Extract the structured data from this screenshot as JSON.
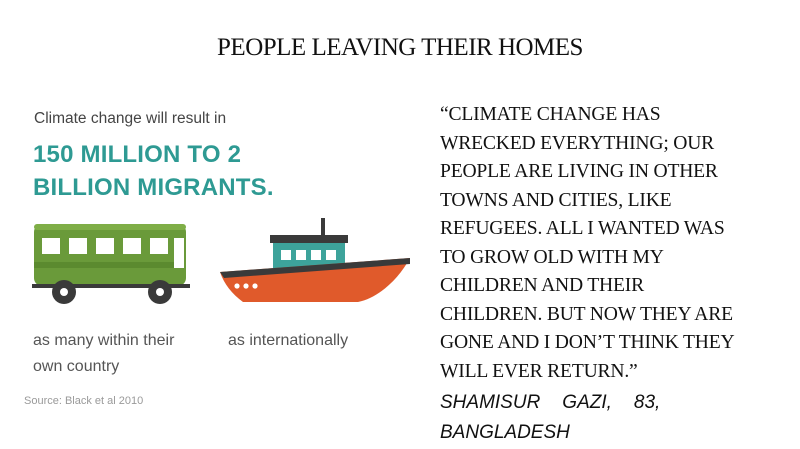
{
  "title": "PEOPLE LEAVING THEIR HOMES",
  "infographic": {
    "intro": "Climate change will result in",
    "stat_line1": "150 MILLION TO 2",
    "stat_line2": "BILLION MIGRANTS.",
    "bus_caption_line1": "as many within their",
    "bus_caption_line2": "own country",
    "boat_caption": "as internationally",
    "source": "Source: Black et al 2010",
    "colors": {
      "accent": "#2e9a93",
      "bus_green": "#6a9a3a",
      "boat_orange": "#e05a2b",
      "boat_teal": "#3da39b"
    },
    "icons": [
      "bus-icon",
      "boat-icon"
    ]
  },
  "quote": {
    "lines": [
      "“CLIMATE CHANGE HAS",
      "WRECKED EVERYTHING; OUR",
      "PEOPLE ARE LIVING IN OTHER",
      "TOWNS AND CITIES, LIKE",
      "REFUGEES. ALL I WANTED WAS",
      "TO GROW OLD WITH MY",
      "CHILDREN AND THEIR",
      "CHILDREN. BUT NOW THEY ARE",
      "GONE AND I DON’T THINK THEY",
      "WILL EVER RETURN.”"
    ],
    "attribution_name1": "SHAMISUR",
    "attribution_name2": "GAZI,",
    "attribution_age": "83,",
    "attribution_place": "BANGLADESH"
  }
}
